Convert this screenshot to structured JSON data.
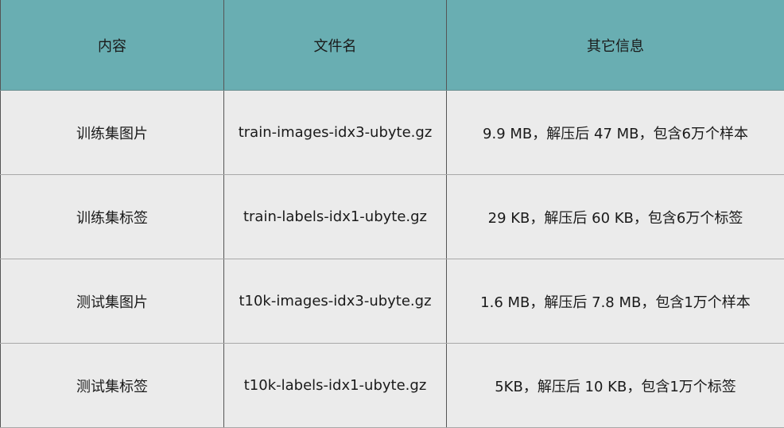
{
  "colors": {
    "header_bg": "#69aeb2",
    "row_bg": "#ebebeb"
  },
  "table": {
    "headers": [
      "内容",
      "文件名",
      "其它信息"
    ],
    "rows": [
      [
        "训练集图片",
        "train-images-idx3-ubyte.gz",
        "9.9 MB，解压后 47 MB，包含6万个样本"
      ],
      [
        "训练集标签",
        "train-labels-idx1-ubyte.gz",
        "29 KB，解压后 60 KB，包含6万个标签"
      ],
      [
        "测试集图片",
        "t10k-images-idx3-ubyte.gz",
        "1.6 MB，解压后 7.8 MB，包含1万个样本"
      ],
      [
        "测试集标签",
        "t10k-labels-idx1-ubyte.gz",
        "5KB，解压后 10 KB，包含1万个标签"
      ]
    ]
  }
}
